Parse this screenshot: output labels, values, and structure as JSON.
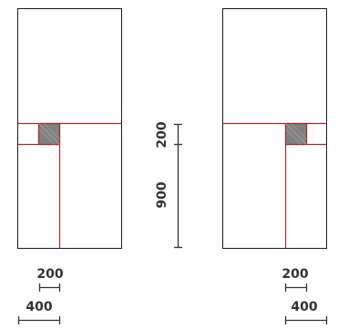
{
  "colors": {
    "outline": "#1a1a1a",
    "guide_line": "#a52a2a",
    "square_fill": "#808080",
    "dimension": "#333333",
    "background": "#ffffff"
  },
  "dimensions": {
    "left_width_small": "200",
    "left_width_large": "400",
    "vertical_top": "200",
    "vertical_bottom": "900",
    "right_width_small": "200",
    "right_width_large": "400"
  }
}
